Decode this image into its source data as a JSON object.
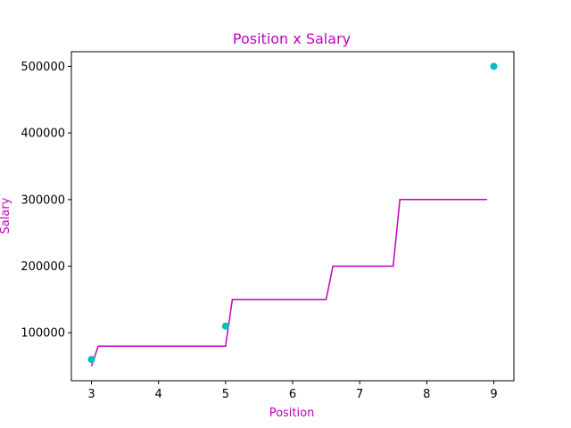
{
  "chart_data": {
    "type": "line",
    "title": "Position x Salary",
    "xlabel": "Position",
    "ylabel": "Salary",
    "xlim": [
      2.7,
      9.3
    ],
    "ylim": [
      28000,
      522000
    ],
    "x_ticks": [
      3,
      4,
      5,
      6,
      7,
      8,
      9
    ],
    "y_ticks": [
      100000,
      200000,
      300000,
      400000,
      500000
    ],
    "grid": false,
    "colors": {
      "line": "#bf00bf",
      "points": "#00bfbf"
    },
    "series": [
      {
        "type": "scatter",
        "points": [
          {
            "x": 3,
            "y": 60000
          },
          {
            "x": 5,
            "y": 110000
          },
          {
            "x": 9,
            "y": 500000
          }
        ]
      },
      {
        "type": "line",
        "points": [
          {
            "x": 3.0,
            "y": 50000
          },
          {
            "x": 3.1,
            "y": 80000
          },
          {
            "x": 5.0,
            "y": 80000
          },
          {
            "x": 5.1,
            "y": 150000
          },
          {
            "x": 6.5,
            "y": 150000
          },
          {
            "x": 6.6,
            "y": 200000
          },
          {
            "x": 7.5,
            "y": 200000
          },
          {
            "x": 7.6,
            "y": 300000
          },
          {
            "x": 8.9,
            "y": 300000
          }
        ]
      }
    ]
  }
}
